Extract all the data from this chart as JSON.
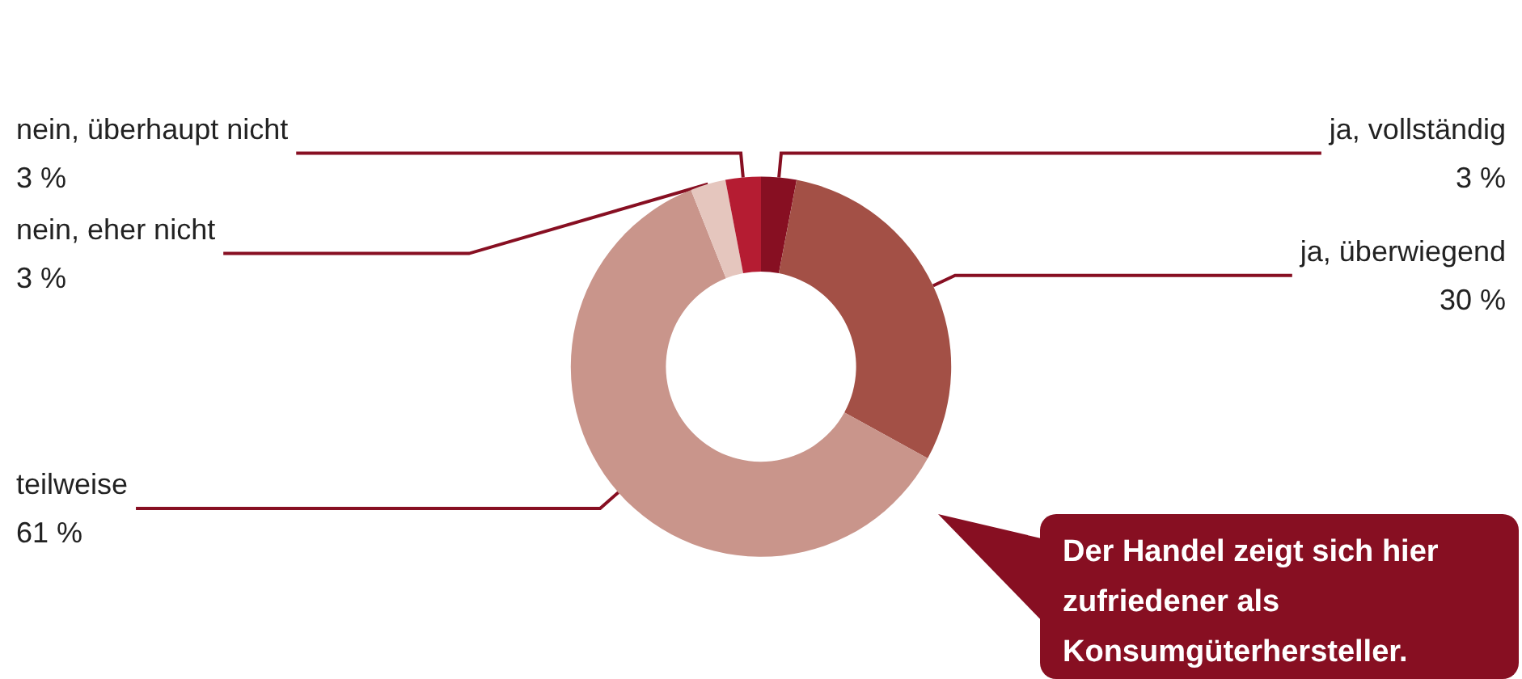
{
  "chart_data": {
    "type": "donut",
    "categories": [
      "ja, vollständig",
      "ja, überwiegend",
      "teilweise",
      "nein, eher nicht",
      "nein, überhaupt nicht"
    ],
    "values": [
      3,
      30,
      61,
      3,
      3
    ],
    "value_labels": [
      "3 %",
      "30 %",
      "61 %",
      "3 %",
      "3 %"
    ],
    "colors": [
      "#870f22",
      "#a35046",
      "#c9958b",
      "#e5c6be",
      "#b51c32"
    ],
    "legend": false,
    "annotations": [
      "Der Handel zeigt sich hier zufriedener als Konsumgüterhersteller."
    ]
  }
}
